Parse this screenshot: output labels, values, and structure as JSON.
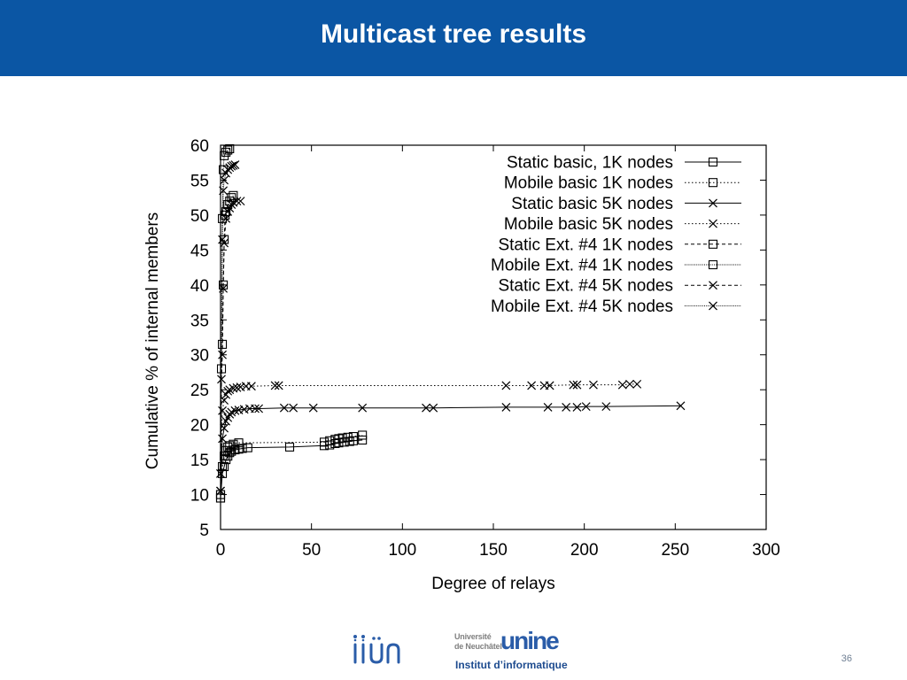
{
  "slide": {
    "title": "Multicast tree results",
    "page_number": "36"
  },
  "footer": {
    "logo_iiun": "iiun",
    "unine_small_1": "Université",
    "unine_small_2": "de Neuchâtel",
    "unine_word": "unine",
    "unine_subtitle": "Institut d’informatique"
  },
  "chart_data": {
    "type": "line",
    "title": "",
    "xlabel": "Degree of relays",
    "ylabel": "Cumulative % of internal members",
    "xlim": [
      0,
      300
    ],
    "ylim": [
      5,
      60
    ],
    "xticks": [
      "0",
      "50",
      "100",
      "150",
      "200",
      "250",
      "300"
    ],
    "yticks": [
      "5",
      "10",
      "15",
      "20",
      "25",
      "30",
      "35",
      "40",
      "45",
      "50",
      "55",
      "60"
    ],
    "grid": false,
    "legend_position": "top-right",
    "series": [
      {
        "name": "Static basic, 1K nodes",
        "line": "solid",
        "marker": "square",
        "points": [
          [
            0,
            9.5
          ],
          [
            1,
            13
          ],
          [
            2,
            14
          ],
          [
            3,
            15
          ],
          [
            4,
            15.5
          ],
          [
            5,
            16
          ],
          [
            6,
            16.2
          ],
          [
            8,
            16.4
          ],
          [
            10,
            16.5
          ],
          [
            12,
            16.6
          ],
          [
            15,
            16.7
          ],
          [
            38,
            16.8
          ],
          [
            57,
            17.0
          ],
          [
            60,
            17.1
          ],
          [
            63,
            17.3
          ],
          [
            65,
            17.4
          ],
          [
            68,
            17.5
          ],
          [
            71,
            17.6
          ],
          [
            73,
            17.7
          ],
          [
            78,
            17.8
          ]
        ]
      },
      {
        "name": "Mobile basic 1K nodes",
        "line": "dotted",
        "marker": "square",
        "points": [
          [
            0,
            10
          ],
          [
            1,
            14
          ],
          [
            2,
            15.5
          ],
          [
            3,
            16.3
          ],
          [
            4,
            16.8
          ],
          [
            5,
            17
          ],
          [
            7,
            17.2
          ],
          [
            10,
            17.4
          ],
          [
            57,
            17.5
          ],
          [
            60,
            17.7
          ],
          [
            63,
            17.9
          ],
          [
            65,
            18.0
          ],
          [
            67,
            18.1
          ],
          [
            70,
            18.2
          ],
          [
            73,
            18.3
          ],
          [
            78,
            18.5
          ]
        ]
      },
      {
        "name": "Static basic  5K nodes",
        "line": "solid",
        "marker": "cross",
        "points": [
          [
            0,
            10.5
          ],
          [
            1,
            18
          ],
          [
            2,
            19.5
          ],
          [
            3,
            20.5
          ],
          [
            4,
            21
          ],
          [
            5,
            21.5
          ],
          [
            6,
            21.8
          ],
          [
            8,
            22
          ],
          [
            10,
            22.1
          ],
          [
            13,
            22.2
          ],
          [
            16,
            22.3
          ],
          [
            19,
            22.3
          ],
          [
            21,
            22.3
          ],
          [
            35,
            22.4
          ],
          [
            40,
            22.4
          ],
          [
            51,
            22.4
          ],
          [
            78,
            22.4
          ],
          [
            113,
            22.4
          ],
          [
            117,
            22.4
          ],
          [
            157,
            22.5
          ],
          [
            180,
            22.5
          ],
          [
            190,
            22.5
          ],
          [
            196,
            22.5
          ],
          [
            201,
            22.6
          ],
          [
            212,
            22.6
          ],
          [
            253,
            22.7
          ]
        ]
      },
      {
        "name": "Mobile basic 5K nodes",
        "line": "dotted",
        "marker": "cross",
        "points": [
          [
            0,
            13
          ],
          [
            1,
            22
          ],
          [
            2,
            23.5
          ],
          [
            3,
            24.3
          ],
          [
            4,
            24.8
          ],
          [
            5,
            25
          ],
          [
            7,
            25.2
          ],
          [
            9,
            25.3
          ],
          [
            11,
            25.4
          ],
          [
            14,
            25.5
          ],
          [
            17,
            25.5
          ],
          [
            30,
            25.6
          ],
          [
            32,
            25.6
          ],
          [
            157,
            25.6
          ],
          [
            171,
            25.6
          ],
          [
            178,
            25.6
          ],
          [
            181,
            25.6
          ],
          [
            194,
            25.7
          ],
          [
            196,
            25.7
          ],
          [
            205,
            25.7
          ],
          [
            221,
            25.7
          ],
          [
            225,
            25.8
          ],
          [
            229,
            25.8
          ]
        ]
      },
      {
        "name": "Static Ext. #4 1K nodes",
        "line": "dashed",
        "marker": "square",
        "points": [
          [
            0,
            9.5
          ],
          [
            0.5,
            28
          ],
          [
            1,
            31.5
          ],
          [
            1.5,
            40
          ],
          [
            2,
            46.5
          ],
          [
            2.5,
            50
          ],
          [
            3,
            50.5
          ],
          [
            4,
            51.5
          ],
          [
            5,
            52
          ],
          [
            6,
            52.5
          ],
          [
            7,
            52.8
          ]
        ]
      },
      {
        "name": "Mobile Ext. #4 1K nodes",
        "line": "dense-dotted",
        "marker": "square",
        "points": [
          [
            0,
            10
          ],
          [
            1,
            49.5
          ],
          [
            1.5,
            56.5
          ],
          [
            2,
            58.5
          ],
          [
            3,
            59
          ],
          [
            4,
            59.3
          ],
          [
            5,
            59.5
          ]
        ]
      },
      {
        "name": "Static Ext. #4 5K nodes",
        "line": "dashed",
        "marker": "cross",
        "points": [
          [
            0,
            10.5
          ],
          [
            0.5,
            26.5
          ],
          [
            1,
            30
          ],
          [
            1.5,
            39.5
          ],
          [
            2,
            46
          ],
          [
            3,
            49.5
          ],
          [
            4,
            50.5
          ],
          [
            5,
            51
          ],
          [
            6,
            51.5
          ],
          [
            7,
            51.8
          ],
          [
            9,
            52
          ],
          [
            11,
            52
          ]
        ]
      },
      {
        "name": "Mobile Ext. #4 5K nodes",
        "line": "dense-dotted",
        "marker": "cross",
        "points": [
          [
            0,
            13
          ],
          [
            1,
            46.5
          ],
          [
            1.5,
            53.5
          ],
          [
            2,
            55
          ],
          [
            3,
            56
          ],
          [
            4,
            56.5
          ],
          [
            5,
            56.8
          ],
          [
            6,
            57
          ],
          [
            7,
            57.1
          ],
          [
            8,
            57.2
          ]
        ]
      }
    ]
  }
}
